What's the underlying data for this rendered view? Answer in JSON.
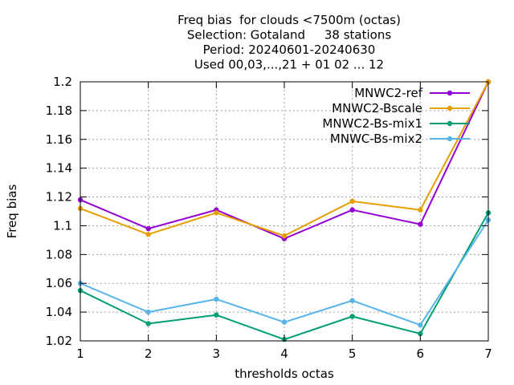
{
  "chart_data": {
    "type": "line",
    "title_lines": [
      "Freq bias  for clouds <7500m (octas)",
      "Selection: Gotaland     38 stations",
      "Period: 20240601-20240630",
      "Used 00,03,...,21 + 01 02 ... 12"
    ],
    "xlabel": "thresholds octas",
    "ylabel": "Freq bias",
    "xlim": [
      1,
      7
    ],
    "ylim": [
      1.02,
      1.2
    ],
    "x_ticks": [
      1,
      2,
      3,
      4,
      5,
      6,
      7
    ],
    "y_ticks": [
      1.02,
      1.04,
      1.06,
      1.08,
      1.1,
      1.12,
      1.14,
      1.16,
      1.18,
      1.2
    ],
    "y_tick_labels": [
      "1.02",
      "1.04",
      "1.06",
      "1.08",
      "1.1",
      "1.12",
      "1.14",
      "1.16",
      "1.18",
      "1.2"
    ],
    "grid": true,
    "legend_position": "top-right",
    "x": [
      1,
      2,
      3,
      4,
      5,
      6,
      7
    ],
    "series": [
      {
        "name": "MNWC2-ref",
        "color": "#9400d3",
        "values": [
          1.118,
          1.098,
          1.111,
          1.091,
          1.111,
          1.101,
          1.2
        ]
      },
      {
        "name": "MNWC2-Bscale",
        "color": "#e69f00",
        "values": [
          1.112,
          1.094,
          1.109,
          1.093,
          1.117,
          1.111,
          1.2
        ]
      },
      {
        "name": "MNWC2-Bs-mix1",
        "color": "#009e73",
        "values": [
          1.055,
          1.032,
          1.038,
          1.021,
          1.037,
          1.025,
          1.109
        ]
      },
      {
        "name": "MNWC-Bs-mix2",
        "color": "#56b4e9",
        "values": [
          1.06,
          1.04,
          1.049,
          1.033,
          1.048,
          1.031,
          1.104
        ]
      }
    ]
  }
}
